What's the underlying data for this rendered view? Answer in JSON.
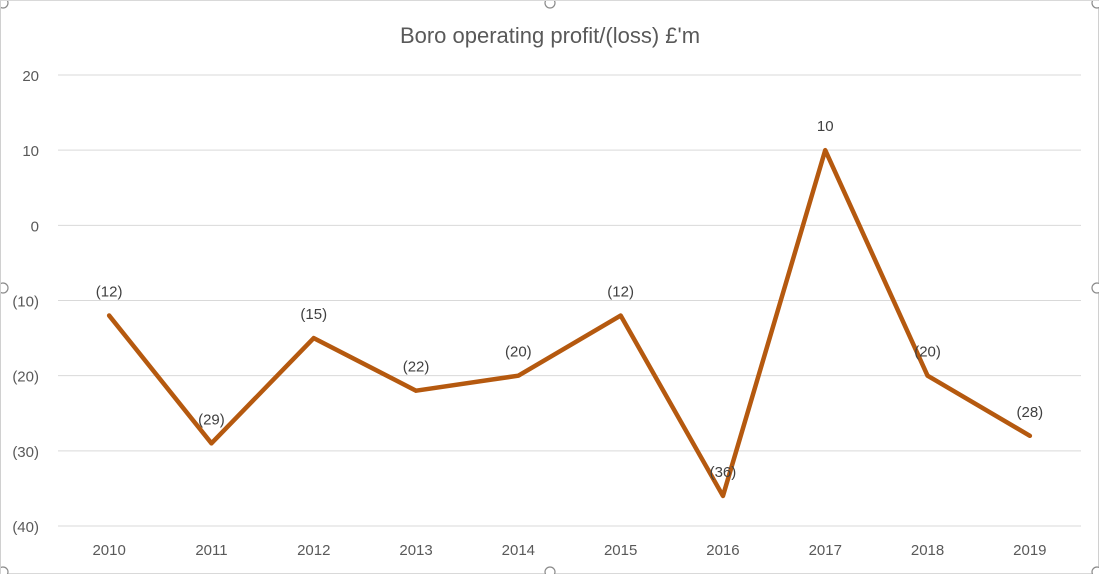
{
  "chart_data": {
    "type": "line",
    "title": "Boro operating profit/(loss) £'m",
    "xlabel": "",
    "ylabel": "",
    "categories": [
      "2010",
      "2011",
      "2012",
      "2013",
      "2014",
      "2015",
      "2016",
      "2017",
      "2018",
      "2019"
    ],
    "series": [
      {
        "values": [
          -12,
          -29,
          -15,
          -22,
          -20,
          -12,
          -36,
          10,
          -20,
          -28
        ],
        "data_labels": [
          "(12)",
          "(29)",
          "(15)",
          "(22)",
          "(20)",
          "(12)",
          "(36)",
          "10",
          "(20)",
          "(28)"
        ],
        "color": "#b5590f"
      }
    ],
    "ylim": [
      -40,
      20
    ],
    "yticks": [
      20,
      10,
      0,
      -10,
      -20,
      -30,
      -40
    ],
    "ytick_labels": [
      "20",
      "10",
      "0",
      "(10)",
      "(20)",
      "(30)",
      "(40)"
    ],
    "grid": true,
    "legend": "none"
  },
  "colors": {
    "line": "#b5590f",
    "grid": "#d9d9d9",
    "text": "#595959",
    "title": "#595959"
  }
}
